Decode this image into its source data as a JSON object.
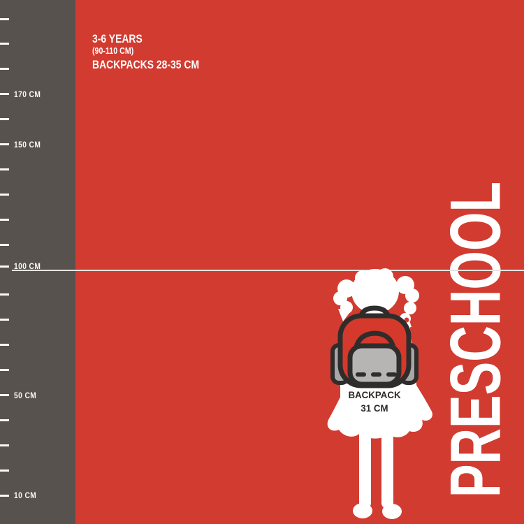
{
  "colors": {
    "background_red": "#d23b30",
    "ruler_gray": "#57524e",
    "white": "#ffffff",
    "backpack_red": "#d5392b",
    "outline_dark": "#2f2d2b",
    "front_pocket_gray": "#b6b5b3",
    "side_pocket_gray": "#a8a7a5",
    "caption_dark": "#2c2a28"
  },
  "header": {
    "line1": "3-6 YEARS",
    "line2": "(90-110 CM)",
    "line3": "BACKPACKS 28-35 CM"
  },
  "ruler": {
    "unit": "CM",
    "tick_interval_cm": 10,
    "ticks_cm": [
      10,
      20,
      30,
      40,
      50,
      60,
      70,
      80,
      90,
      100,
      110,
      120,
      130,
      140,
      150,
      160,
      170,
      180,
      190,
      200
    ],
    "labels": [
      {
        "cm": 170,
        "text": "170 CM"
      },
      {
        "cm": 150,
        "text": "150 CM"
      },
      {
        "cm": 100,
        "text": "100 CM"
      },
      {
        "cm": 50,
        "text": "50 CM"
      },
      {
        "cm": 10,
        "text": "10 CM"
      }
    ]
  },
  "height_line": {
    "cm": 100
  },
  "figure": {
    "child": "girl-silhouette-back-view",
    "backpack_icon": "backpack-icon",
    "caption_line1": "BACKPACK",
    "caption_line2": "31 CM"
  },
  "category": {
    "label": "PRESCHOOL"
  }
}
